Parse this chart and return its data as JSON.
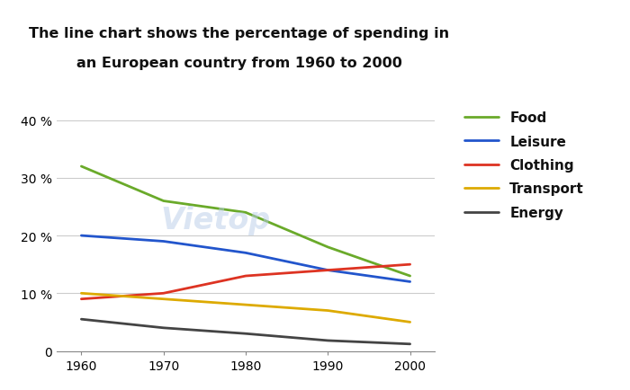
{
  "title_line1": "The line chart shows the percentage of spending in",
  "title_line2": "an European country from 1960 to 2000",
  "years": [
    1960,
    1970,
    1980,
    1990,
    2000
  ],
  "series": {
    "Food": {
      "values": [
        32,
        26,
        24,
        18,
        13
      ],
      "color": "#6aaa2a"
    },
    "Leisure": {
      "values": [
        20,
        19,
        17,
        14,
        12
      ],
      "color": "#2255cc"
    },
    "Clothing": {
      "values": [
        9,
        10,
        13,
        14,
        15
      ],
      "color": "#dd3322"
    },
    "Transport": {
      "values": [
        10,
        9,
        8,
        7,
        5
      ],
      "color": "#ddaa00"
    },
    "Energy": {
      "values": [
        5.5,
        4,
        3,
        1.8,
        1.2
      ],
      "color": "#444444"
    }
  },
  "ylim": [
    0,
    42
  ],
  "yticks": [
    0,
    10,
    20,
    30,
    40
  ],
  "ytick_labels": [
    "0",
    "10 %",
    "20 %",
    "30 %",
    "40 %"
  ],
  "xticks": [
    1960,
    1970,
    1980,
    1990,
    2000
  ],
  "background_color": "#ffffff",
  "watermark_text": "Vietop",
  "watermark_color": "#b8cce8",
  "watermark_alpha": 0.5,
  "grid_color": "#cccccc",
  "spine_color": "#888888"
}
